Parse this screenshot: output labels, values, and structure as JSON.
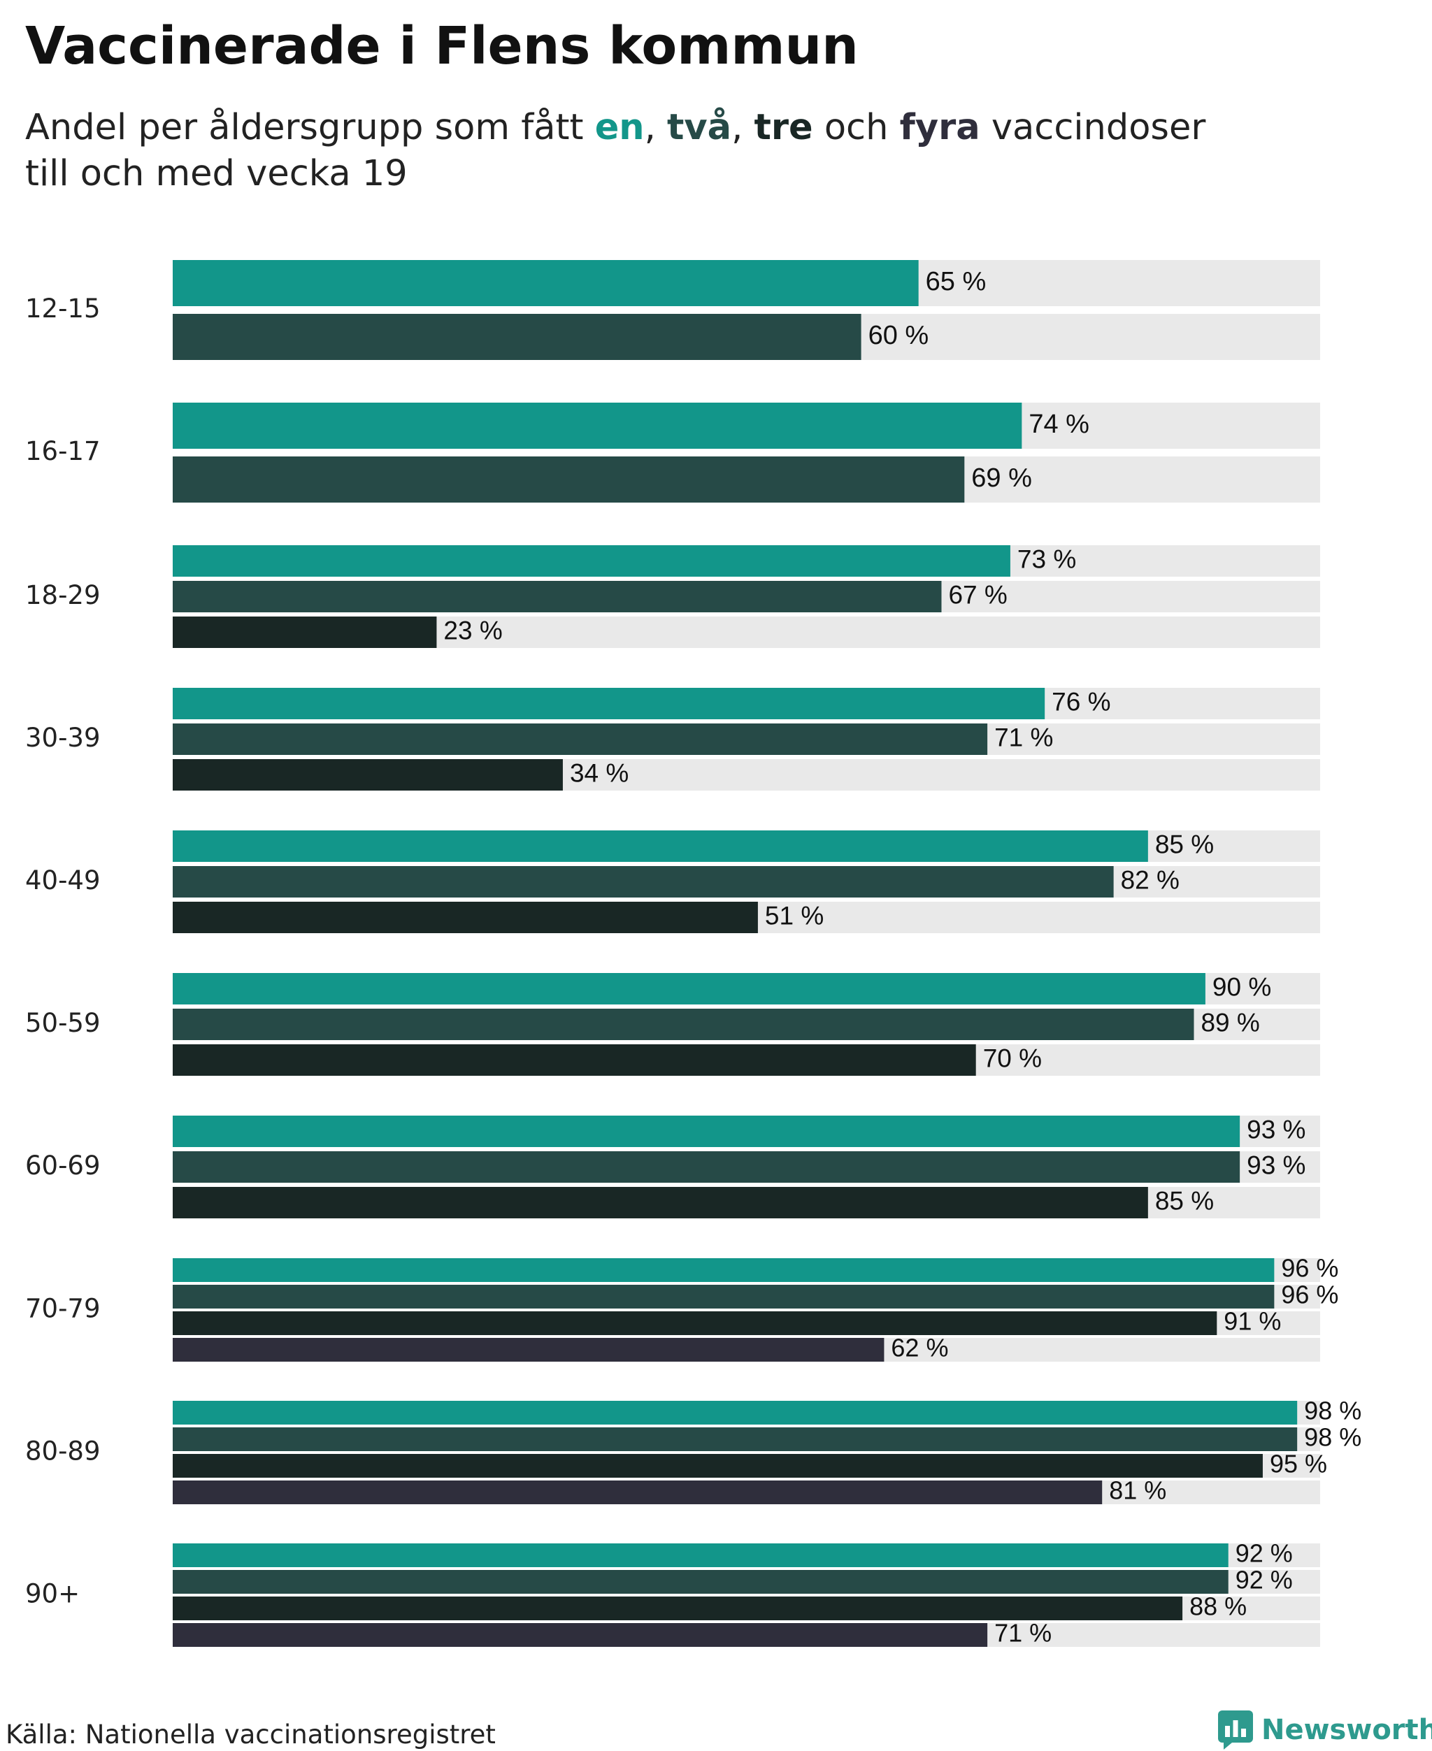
{
  "title": "Vaccinerade i Flens kommun",
  "subtitle": {
    "prefix": "Andel per åldersgrupp som fått ",
    "dose1": "en",
    "sep1": ", ",
    "dose2": "två",
    "sep2": ", ",
    "dose3": "tre",
    "sep3": " och ",
    "dose4": "fyra",
    "suffix": " vaccindoser",
    "line2": "till och med vecka 19"
  },
  "colors": {
    "dose1": "#12968a",
    "dose2": "#264a47",
    "dose3": "#192725",
    "dose4": "#2f2e3c",
    "track": "#e9e9e9",
    "brand": "#2e9a8e"
  },
  "chart_data": {
    "type": "bar",
    "orientation": "horizontal",
    "xlim": [
      0,
      100
    ],
    "value_suffix": " %",
    "categories": [
      "12-15",
      "16-17",
      "18-29",
      "30-39",
      "40-49",
      "50-59",
      "60-69",
      "70-79",
      "80-89",
      "90+"
    ],
    "series": [
      {
        "key": "dose1",
        "values": [
          65,
          74,
          73,
          76,
          85,
          90,
          93,
          96,
          98,
          92
        ]
      },
      {
        "key": "dose2",
        "values": [
          60,
          69,
          67,
          71,
          82,
          89,
          93,
          96,
          98,
          92
        ]
      },
      {
        "key": "dose3",
        "values": [
          null,
          null,
          23,
          34,
          51,
          70,
          85,
          91,
          95,
          88
        ]
      },
      {
        "key": "dose4",
        "values": [
          null,
          null,
          null,
          null,
          null,
          null,
          null,
          62,
          81,
          71
        ]
      }
    ]
  },
  "footer": {
    "source": "Källa: Nationella vaccinationsregistret",
    "brand": "Newsworthy",
    "brand_icon": "newsworthy-logo-icon"
  }
}
